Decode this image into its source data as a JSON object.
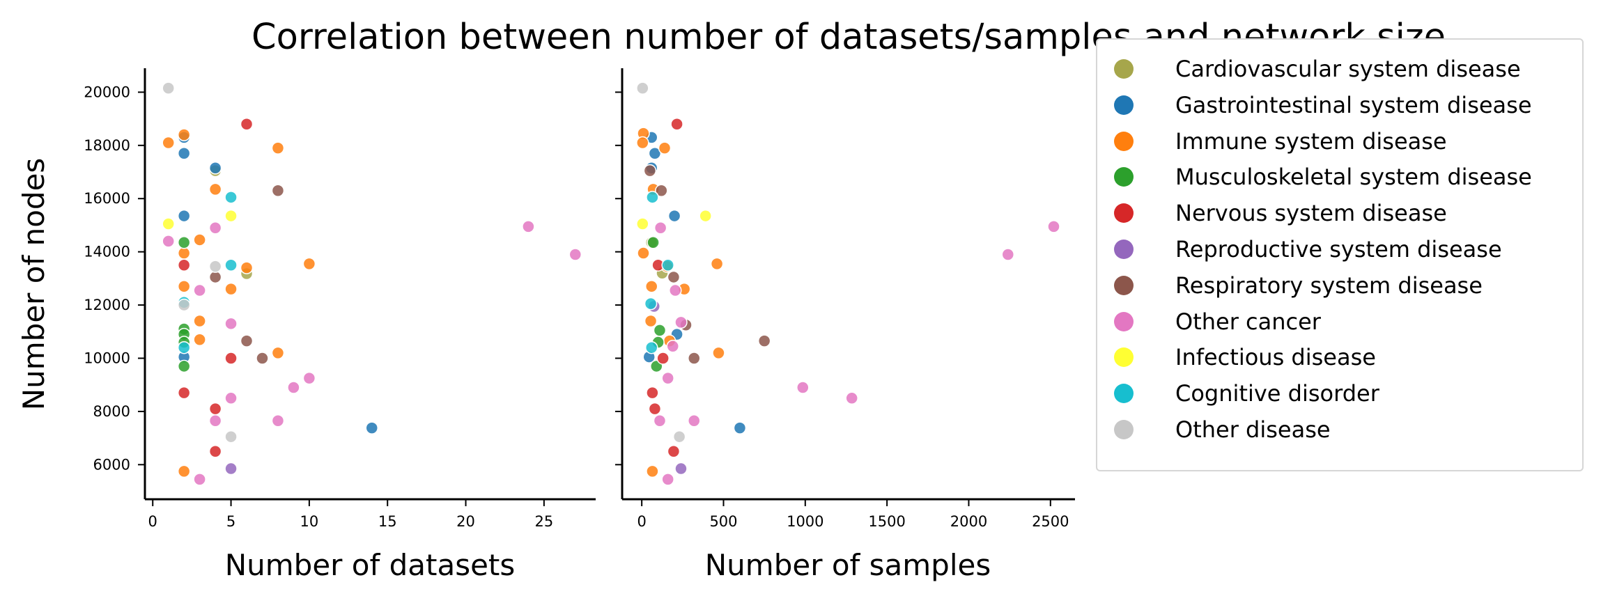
{
  "title": "Correlation between number of datasets/samples and network size",
  "categories": [
    {
      "name": "Cardiovascular system disease",
      "color": "#a6a64b"
    },
    {
      "name": "Gastrointestinal system disease",
      "color": "#1f77b4"
    },
    {
      "name": "Immune system disease",
      "color": "#ff7f0e"
    },
    {
      "name": "Musculoskeletal system disease",
      "color": "#2ca02c"
    },
    {
      "name": "Nervous system disease",
      "color": "#d62728"
    },
    {
      "name": "Reproductive system disease",
      "color": "#9467bd"
    },
    {
      "name": "Respiratory system disease",
      "color": "#8c564b"
    },
    {
      "name": "Other cancer",
      "color": "#e377c2"
    },
    {
      "name": "Infectious disease",
      "color": "#ffff33"
    },
    {
      "name": "Cognitive disorder",
      "color": "#17becf"
    },
    {
      "name": "Other disease",
      "color": "#c7c7c7"
    }
  ],
  "chart_data": [
    {
      "type": "scatter",
      "xlabel": "Number of datasets",
      "ylabel": "Number of nodes",
      "xlim": [
        -0.5,
        28.3
      ],
      "ylim": [
        4700,
        20900
      ],
      "xticks": [
        0,
        5,
        10,
        15,
        20,
        25
      ],
      "yticks": [
        6000,
        8000,
        10000,
        12000,
        14000,
        16000,
        18000,
        20000
      ],
      "series": [
        {
          "name": "Cardiovascular system disease",
          "points": [
            [
              6,
              13180
            ],
            [
              4,
              17050
            ]
          ]
        },
        {
          "name": "Gastrointestinal system disease",
          "points": [
            [
              2,
              18300
            ],
            [
              2,
              17700
            ],
            [
              4,
              17150
            ],
            [
              2,
              15350
            ],
            [
              2,
              10050
            ],
            [
              14,
              7380
            ]
          ]
        },
        {
          "name": "Immune system disease",
          "points": [
            [
              2,
              18400
            ],
            [
              1,
              18100
            ],
            [
              8,
              17900
            ],
            [
              4,
              16350
            ],
            [
              3,
              14450
            ],
            [
              2,
              13950
            ],
            [
              6,
              13400
            ],
            [
              10,
              13550
            ],
            [
              2,
              12700
            ],
            [
              5,
              12600
            ],
            [
              3,
              11400
            ],
            [
              3,
              10700
            ],
            [
              8,
              10200
            ],
            [
              2,
              5750
            ]
          ]
        },
        {
          "name": "Musculoskeletal system disease",
          "points": [
            [
              2,
              14350
            ],
            [
              2,
              11100
            ],
            [
              2,
              10900
            ],
            [
              2,
              10600
            ],
            [
              2,
              9700
            ]
          ]
        },
        {
          "name": "Nervous system disease",
          "points": [
            [
              6,
              18800
            ],
            [
              2,
              13500
            ],
            [
              5,
              10000
            ],
            [
              2,
              8700
            ],
            [
              4,
              8100
            ],
            [
              4,
              6500
            ]
          ]
        },
        {
          "name": "Reproductive system disease",
          "points": [
            [
              5,
              5850
            ]
          ]
        },
        {
          "name": "Respiratory system disease",
          "points": [
            [
              8,
              16300
            ],
            [
              4,
              13050
            ],
            [
              6,
              10650
            ],
            [
              7,
              10000
            ]
          ]
        },
        {
          "name": "Other cancer",
          "points": [
            [
              1,
              14400
            ],
            [
              4,
              14900
            ],
            [
              3,
              12550
            ],
            [
              5,
              11300
            ],
            [
              9,
              8900
            ],
            [
              5,
              8500
            ],
            [
              10,
              9250
            ],
            [
              4,
              7650
            ],
            [
              8,
              7650
            ],
            [
              3,
              5450
            ],
            [
              24,
              14950
            ],
            [
              27,
              13900
            ]
          ]
        },
        {
          "name": "Infectious disease",
          "points": [
            [
              1,
              15050
            ],
            [
              5,
              15350
            ]
          ]
        },
        {
          "name": "Cognitive disorder",
          "points": [
            [
              5,
              16050
            ],
            [
              5,
              13500
            ],
            [
              2,
              12100
            ],
            [
              2,
              10400
            ]
          ]
        },
        {
          "name": "Other disease",
          "points": [
            [
              1,
              20150
            ],
            [
              4,
              13450
            ],
            [
              2,
              12000
            ],
            [
              5,
              7050
            ]
          ]
        }
      ]
    },
    {
      "type": "scatter",
      "xlabel": "Number of samples",
      "ylabel": "",
      "xlim": [
        -120,
        2650
      ],
      "ylim": [
        4700,
        20900
      ],
      "xticks": [
        0,
        500,
        1000,
        1500,
        2000,
        2500
      ],
      "yticks": [
        6000,
        8000,
        10000,
        12000,
        14000,
        16000,
        18000,
        20000
      ],
      "series": [
        {
          "name": "Cardiovascular system disease",
          "points": [
            [
              125,
              13200
            ],
            [
              60,
              14350
            ]
          ]
        },
        {
          "name": "Gastrointestinal system disease",
          "points": [
            [
              60,
              18300
            ],
            [
              80,
              17700
            ],
            [
              60,
              17150
            ],
            [
              200,
              15350
            ],
            [
              215,
              10900
            ],
            [
              45,
              10050
            ],
            [
              600,
              7380
            ]
          ]
        },
        {
          "name": "Immune system disease",
          "points": [
            [
              10,
              18450
            ],
            [
              5,
              18100
            ],
            [
              140,
              17900
            ],
            [
              70,
              16350
            ],
            [
              10,
              13950
            ],
            [
              155,
              13450
            ],
            [
              460,
              13550
            ],
            [
              60,
              12700
            ],
            [
              260,
              12600
            ],
            [
              55,
              11400
            ],
            [
              170,
              10650
            ],
            [
              470,
              10200
            ],
            [
              65,
              5750
            ]
          ]
        },
        {
          "name": "Musculoskeletal system disease",
          "points": [
            [
              70,
              14350
            ],
            [
              110,
              11050
            ],
            [
              100,
              10600
            ],
            [
              90,
              9700
            ]
          ]
        },
        {
          "name": "Nervous system disease",
          "points": [
            [
              215,
              18800
            ],
            [
              100,
              13500
            ],
            [
              130,
              10000
            ],
            [
              65,
              8700
            ],
            [
              80,
              8100
            ],
            [
              195,
              6500
            ]
          ]
        },
        {
          "name": "Reproductive system disease",
          "points": [
            [
              240,
              5850
            ],
            [
              75,
              11950
            ]
          ]
        },
        {
          "name": "Respiratory system disease",
          "points": [
            [
              50,
              17050
            ],
            [
              120,
              16300
            ],
            [
              195,
              13050
            ],
            [
              270,
              11250
            ],
            [
              750,
              10650
            ],
            [
              320,
              10000
            ]
          ]
        },
        {
          "name": "Other cancer",
          "points": [
            [
              115,
              14900
            ],
            [
              205,
              12550
            ],
            [
              240,
              11350
            ],
            [
              190,
              10450
            ],
            [
              160,
              9250
            ],
            [
              985,
              8900
            ],
            [
              1285,
              8500
            ],
            [
              110,
              7650
            ],
            [
              320,
              7650
            ],
            [
              160,
              5450
            ],
            [
              2520,
              14950
            ],
            [
              2240,
              13900
            ]
          ]
        },
        {
          "name": "Infectious disease",
          "points": [
            [
              5,
              15050
            ],
            [
              390,
              15350
            ]
          ]
        },
        {
          "name": "Cognitive disorder",
          "points": [
            [
              65,
              16050
            ],
            [
              160,
              13500
            ],
            [
              55,
              12050
            ],
            [
              60,
              10400
            ]
          ]
        },
        {
          "name": "Other disease",
          "points": [
            [
              5,
              20150
            ],
            [
              230,
              7050
            ]
          ]
        }
      ]
    }
  ]
}
